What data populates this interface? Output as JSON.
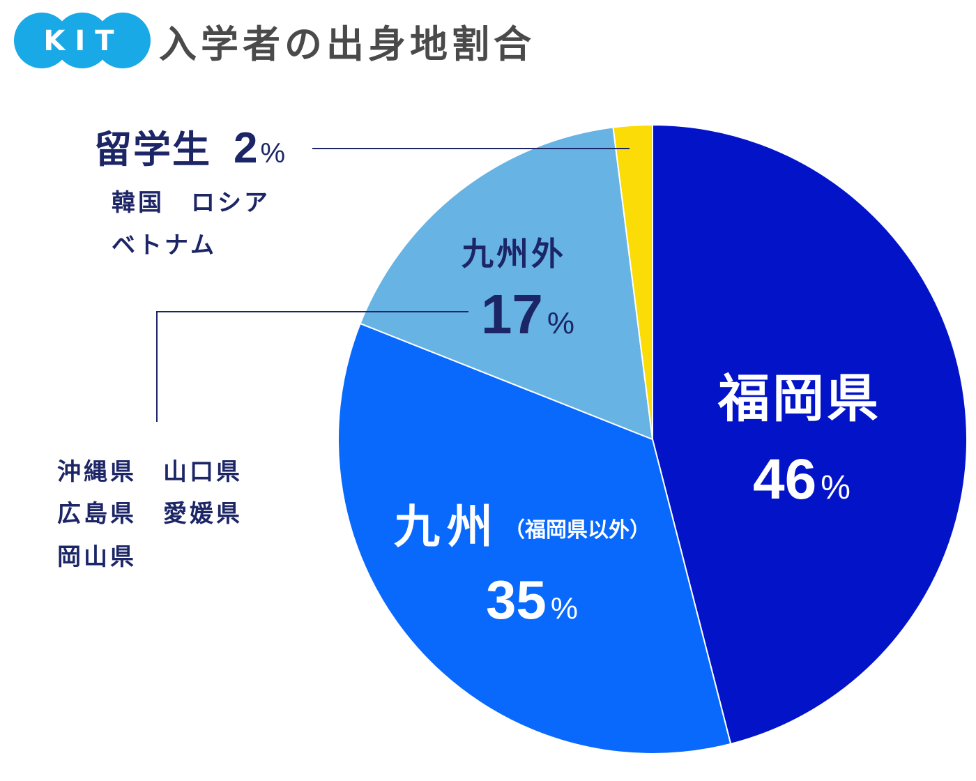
{
  "logo": {
    "text": "KIT"
  },
  "title": "入学者の出身地割合",
  "chart_data": {
    "type": "pie",
    "title": "入学者の出身地割合",
    "categories": [
      "福岡県",
      "九州",
      "九州外",
      "留学生"
    ],
    "values": [
      46,
      35,
      17,
      2
    ],
    "unit": "%",
    "colors": [
      "#0314c8",
      "#0869fc",
      "#66b3e4",
      "#fbdc06"
    ],
    "labels": [
      {
        "category": "福岡県",
        "value": "46",
        "unit": "%"
      },
      {
        "category": "九州",
        "qualifier": "（福岡県以外）",
        "value": "35",
        "unit": "%"
      },
      {
        "category": "九州外",
        "value": "17",
        "unit": "%"
      },
      {
        "category": "留学生",
        "value": "2",
        "unit": "%"
      }
    ],
    "annotations": {
      "ryugakusei": [
        "韓国　ロシア",
        "ベトナム"
      ],
      "kyushugai": [
        "沖縄県　山口県",
        "広島県　愛媛県",
        "岡山県"
      ]
    }
  }
}
